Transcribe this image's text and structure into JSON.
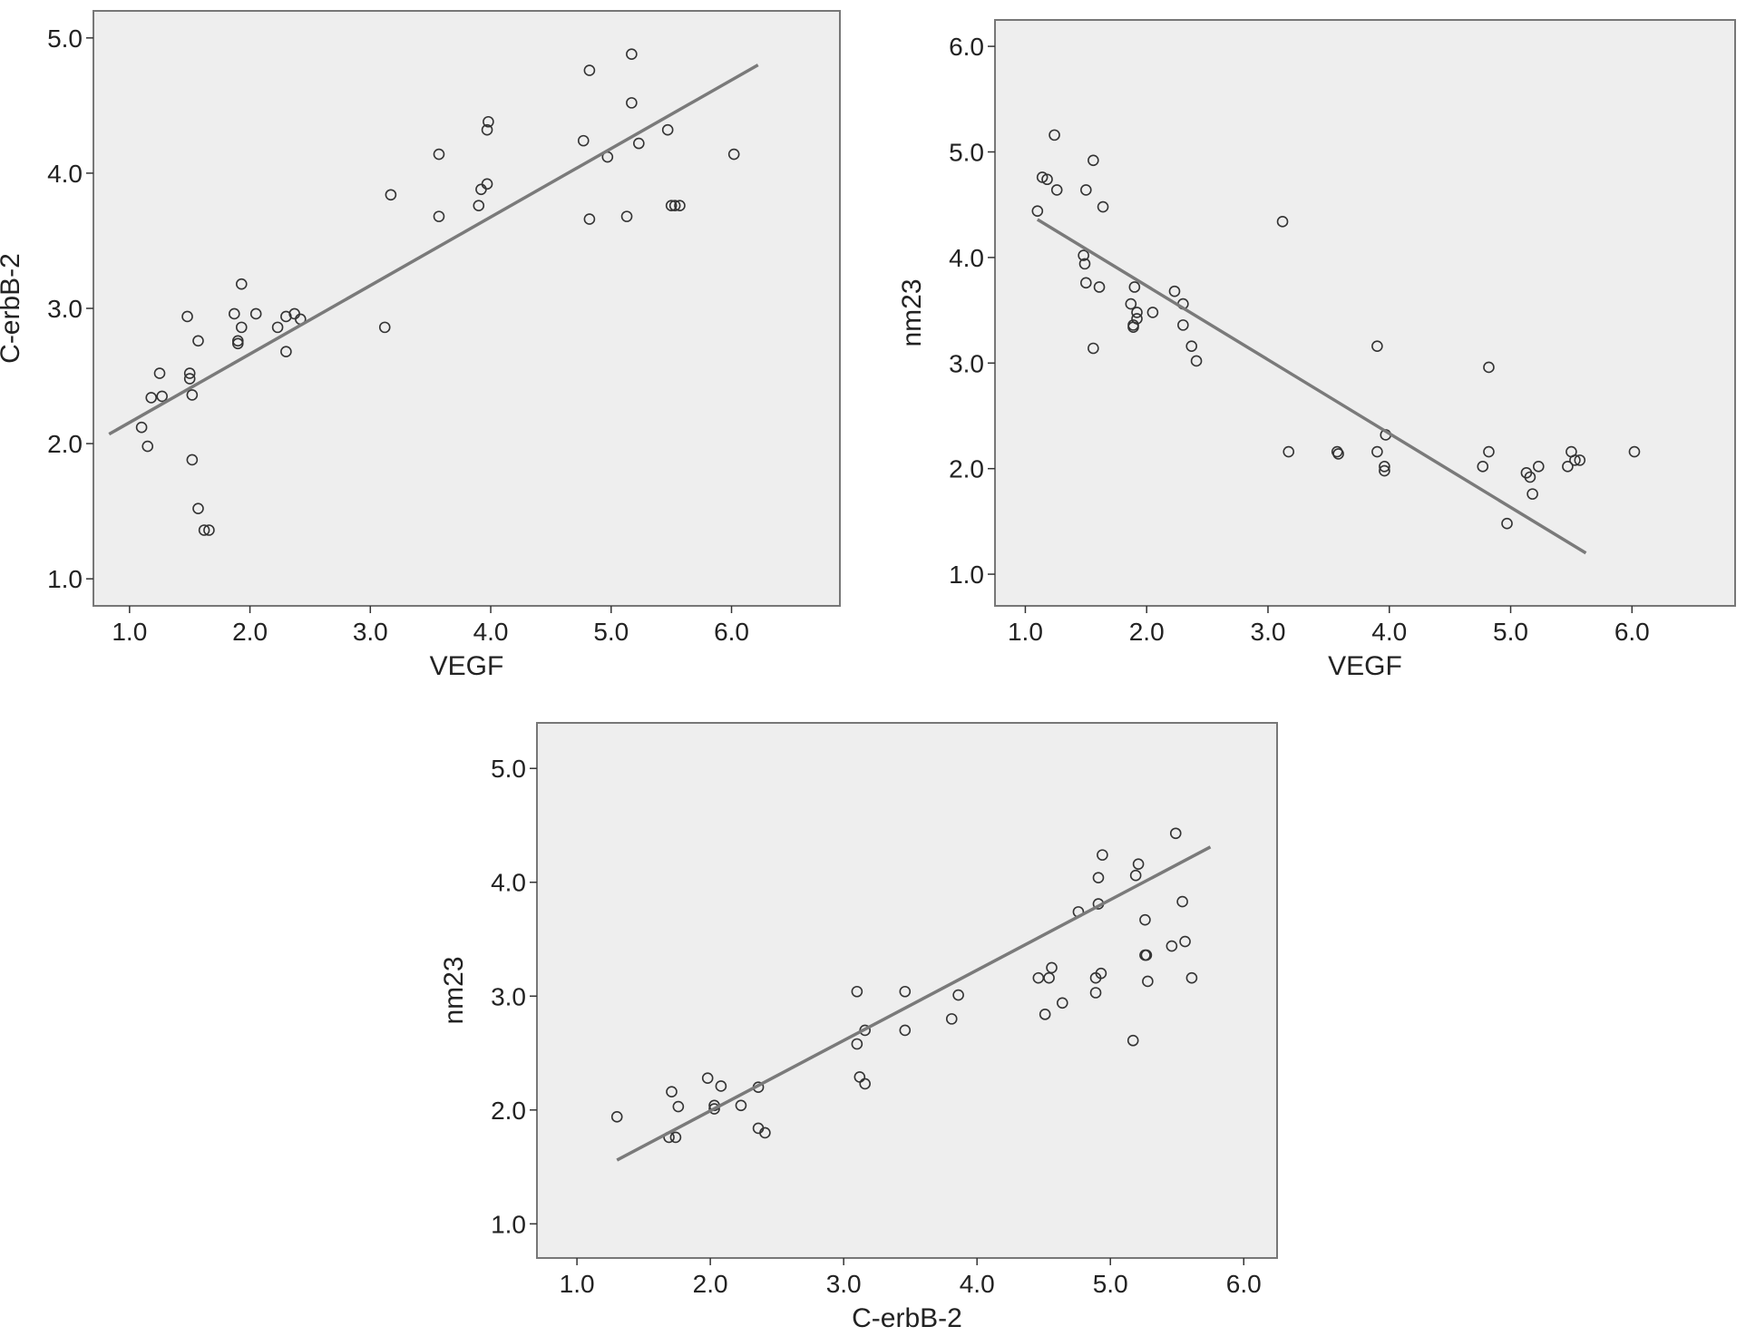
{
  "chart_data": [
    {
      "type": "scatter",
      "xlabel": "VEGF",
      "ylabel": "C-erbB-2",
      "xlim": [
        0.7,
        6.9
      ],
      "ylim": [
        0.8,
        5.2
      ],
      "xticks": [
        "1.0",
        "2.0",
        "3.0",
        "4.0",
        "5.0",
        "6.0"
      ],
      "yticks": [
        "1.0",
        "2.0",
        "3.0",
        "4.0",
        "5.0"
      ],
      "fit_line": [
        [
          0.83,
          2.07
        ],
        [
          6.22,
          4.8
        ]
      ],
      "points": [
        [
          1.1,
          2.12
        ],
        [
          1.15,
          1.98
        ],
        [
          1.18,
          2.34
        ],
        [
          1.25,
          2.52
        ],
        [
          1.27,
          2.35
        ],
        [
          1.48,
          2.94
        ],
        [
          1.5,
          2.52
        ],
        [
          1.5,
          2.48
        ],
        [
          1.52,
          2.36
        ],
        [
          1.52,
          1.88
        ],
        [
          1.57,
          2.76
        ],
        [
          1.57,
          1.52
        ],
        [
          1.62,
          1.36
        ],
        [
          1.66,
          1.36
        ],
        [
          1.87,
          2.96
        ],
        [
          1.9,
          2.76
        ],
        [
          1.9,
          2.74
        ],
        [
          1.93,
          3.18
        ],
        [
          1.93,
          2.86
        ],
        [
          2.05,
          2.96
        ],
        [
          2.23,
          2.86
        ],
        [
          2.3,
          2.94
        ],
        [
          2.3,
          2.68
        ],
        [
          2.37,
          2.96
        ],
        [
          2.42,
          2.92
        ],
        [
          3.12,
          2.86
        ],
        [
          3.17,
          3.84
        ],
        [
          3.57,
          4.14
        ],
        [
          3.57,
          3.68
        ],
        [
          3.9,
          3.76
        ],
        [
          3.92,
          3.88
        ],
        [
          3.97,
          3.92
        ],
        [
          3.97,
          4.32
        ],
        [
          3.98,
          4.38
        ],
        [
          4.77,
          4.24
        ],
        [
          4.82,
          4.76
        ],
        [
          4.82,
          3.66
        ],
        [
          4.97,
          4.12
        ],
        [
          5.13,
          3.68
        ],
        [
          5.17,
          4.88
        ],
        [
          5.17,
          4.52
        ],
        [
          5.23,
          4.22
        ],
        [
          5.47,
          4.32
        ],
        [
          5.5,
          3.76
        ],
        [
          5.53,
          3.76
        ],
        [
          5.57,
          3.76
        ],
        [
          6.02,
          4.14
        ]
      ]
    },
    {
      "type": "scatter",
      "xlabel": "VEGF",
      "ylabel": "nm23",
      "xlim": [
        0.75,
        6.85
      ],
      "ylim": [
        0.7,
        6.25
      ],
      "xticks": [
        "1.0",
        "2.0",
        "3.0",
        "4.0",
        "5.0",
        "6.0"
      ],
      "yticks": [
        "1.0",
        "2.0",
        "3.0",
        "4.0",
        "5.0",
        "6.0"
      ],
      "fit_line": [
        [
          1.1,
          4.36
        ],
        [
          5.62,
          1.2
        ]
      ],
      "points": [
        [
          1.1,
          4.44
        ],
        [
          1.14,
          4.76
        ],
        [
          1.18,
          4.74
        ],
        [
          1.24,
          5.16
        ],
        [
          1.26,
          4.64
        ],
        [
          1.48,
          4.02
        ],
        [
          1.49,
          3.94
        ],
        [
          1.5,
          3.76
        ],
        [
          1.5,
          4.64
        ],
        [
          1.56,
          4.92
        ],
        [
          1.56,
          3.14
        ],
        [
          1.61,
          3.72
        ],
        [
          1.64,
          4.48
        ],
        [
          1.87,
          3.56
        ],
        [
          1.89,
          3.36
        ],
        [
          1.89,
          3.34
        ],
        [
          1.9,
          3.72
        ],
        [
          1.92,
          3.48
        ],
        [
          1.92,
          3.42
        ],
        [
          2.05,
          3.48
        ],
        [
          2.23,
          3.68
        ],
        [
          2.3,
          3.56
        ],
        [
          2.3,
          3.36
        ],
        [
          2.37,
          3.16
        ],
        [
          2.41,
          3.02
        ],
        [
          3.12,
          4.34
        ],
        [
          3.17,
          2.16
        ],
        [
          3.57,
          2.16
        ],
        [
          3.58,
          2.14
        ],
        [
          3.9,
          2.16
        ],
        [
          3.9,
          3.16
        ],
        [
          3.96,
          2.02
        ],
        [
          3.96,
          1.98
        ],
        [
          3.97,
          2.32
        ],
        [
          4.77,
          2.02
        ],
        [
          4.82,
          2.16
        ],
        [
          4.82,
          2.96
        ],
        [
          4.97,
          1.48
        ],
        [
          5.13,
          1.96
        ],
        [
          5.16,
          1.92
        ],
        [
          5.18,
          1.76
        ],
        [
          5.23,
          2.02
        ],
        [
          5.47,
          2.02
        ],
        [
          5.5,
          2.16
        ],
        [
          5.53,
          2.08
        ],
        [
          5.57,
          2.08
        ],
        [
          6.02,
          2.16
        ]
      ]
    },
    {
      "type": "scatter",
      "xlabel": "C-erbB-2",
      "ylabel": "nm23",
      "xlim": [
        0.7,
        6.25
      ],
      "ylim": [
        0.7,
        5.4
      ],
      "xticks": [
        "1.0",
        "2.0",
        "3.0",
        "4.0",
        "5.0",
        "6.0"
      ],
      "yticks": [
        "1.0",
        "2.0",
        "3.0",
        "4.0",
        "5.0"
      ],
      "fit_line": [
        [
          1.3,
          1.56
        ],
        [
          5.75,
          4.31
        ]
      ],
      "points": [
        [
          1.3,
          1.94
        ],
        [
          1.69,
          1.76
        ],
        [
          1.71,
          2.16
        ],
        [
          1.74,
          1.76
        ],
        [
          1.76,
          2.03
        ],
        [
          1.98,
          2.28
        ],
        [
          2.03,
          2.04
        ],
        [
          2.03,
          2.01
        ],
        [
          2.08,
          2.21
        ],
        [
          2.23,
          2.04
        ],
        [
          2.36,
          2.2
        ],
        [
          2.36,
          1.84
        ],
        [
          2.41,
          1.8
        ],
        [
          3.1,
          3.04
        ],
        [
          3.1,
          2.58
        ],
        [
          3.12,
          2.29
        ],
        [
          3.16,
          2.23
        ],
        [
          3.16,
          2.7
        ],
        [
          3.46,
          3.04
        ],
        [
          3.46,
          2.7
        ],
        [
          3.81,
          2.8
        ],
        [
          3.86,
          3.01
        ],
        [
          4.46,
          3.16
        ],
        [
          4.51,
          2.84
        ],
        [
          4.54,
          3.16
        ],
        [
          4.56,
          3.25
        ],
        [
          4.64,
          2.94
        ],
        [
          4.76,
          3.74
        ],
        [
          4.89,
          3.03
        ],
        [
          4.89,
          3.16
        ],
        [
          4.91,
          3.81
        ],
        [
          4.91,
          4.04
        ],
        [
          4.93,
          3.2
        ],
        [
          4.94,
          4.24
        ],
        [
          5.17,
          2.61
        ],
        [
          5.19,
          4.06
        ],
        [
          5.21,
          4.16
        ],
        [
          5.26,
          3.67
        ],
        [
          5.26,
          3.36
        ],
        [
          5.27,
          3.36
        ],
        [
          5.28,
          3.13
        ],
        [
          5.46,
          3.44
        ],
        [
          5.49,
          4.43
        ],
        [
          5.54,
          3.83
        ],
        [
          5.56,
          3.48
        ],
        [
          5.61,
          3.16
        ]
      ]
    }
  ]
}
